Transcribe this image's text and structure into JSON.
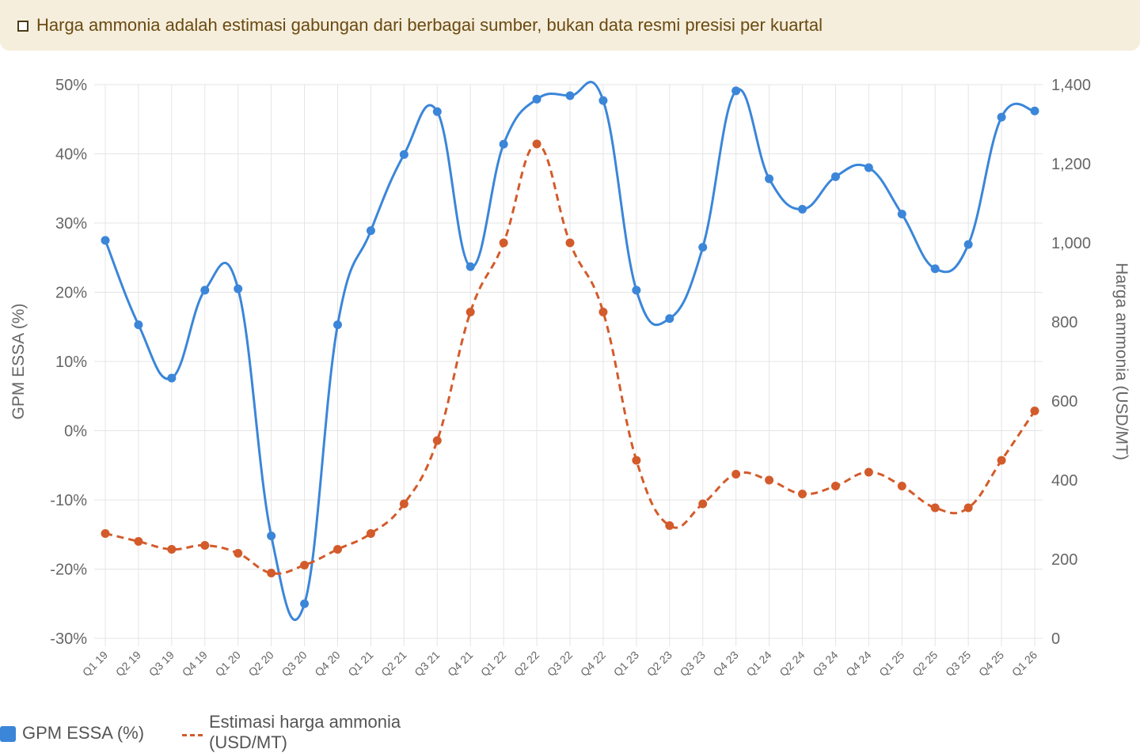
{
  "notice": {
    "icon": "checkbox-icon",
    "text": "Harga ammonia adalah estimasi gabungan dari berbagai sumber, bukan data resmi presisi per kuartal"
  },
  "chart_data": {
    "type": "line",
    "title": "",
    "categories": [
      "Q1 19",
      "Q2 19",
      "Q3 19",
      "Q4 19",
      "Q1 20",
      "Q2 20",
      "Q3 20",
      "Q4 20",
      "Q1 21",
      "Q2 21",
      "Q3 21",
      "Q4 21",
      "Q1 22",
      "Q2 22",
      "Q3 22",
      "Q4 22",
      "Q1 23",
      "Q2 23",
      "Q3 23",
      "Q4 23",
      "Q1 24",
      "Q2 24",
      "Q3 24",
      "Q4 24",
      "Q1 25",
      "Q2 25",
      "Q3 25",
      "Q4 25",
      "Q1 26"
    ],
    "series": [
      {
        "name": "GPM ESSA (%)",
        "axis": "left",
        "color": "#3b86d9",
        "style": "solid",
        "values": [
          27.5,
          15.3,
          7.6,
          20.3,
          20.5,
          -15.2,
          -25.0,
          15.3,
          28.9,
          39.9,
          46.1,
          23.7,
          41.4,
          47.9,
          48.4,
          47.7,
          20.3,
          16.2,
          26.5,
          49.1,
          36.4,
          32.0,
          36.7,
          38.0,
          31.3,
          23.4,
          26.9,
          45.3,
          46.2
        ]
      },
      {
        "name": "Estimasi harga ammonia (USD/MT)",
        "axis": "right",
        "color": "#d35b2b",
        "style": "dashed",
        "values": [
          265,
          245,
          225,
          235,
          215,
          165,
          185,
          225,
          265,
          340,
          500,
          825,
          1000,
          1250,
          1000,
          825,
          450,
          285,
          340,
          415,
          400,
          365,
          385,
          420,
          385,
          330,
          330,
          450,
          575
        ]
      }
    ],
    "y_left": {
      "label": "GPM ESSA (%)",
      "min": -30,
      "max": 50,
      "step": 10,
      "ticks": [
        "50%",
        "40%",
        "30%",
        "20%",
        "10%",
        "0%",
        "-10%",
        "-20%",
        "-30%"
      ]
    },
    "y_right": {
      "label": "Harga ammonia (USD/MT)",
      "min": 0,
      "max": 1400,
      "step": 200,
      "ticks": [
        "1,400",
        "1,200",
        "1,000",
        "800",
        "600",
        "400",
        "200",
        "0"
      ]
    },
    "grid": true,
    "legend": "bottom-left"
  },
  "legend": {
    "items": [
      {
        "label": "GPM ESSA (%)",
        "icon": "blue-square-icon"
      },
      {
        "label": "Estimasi harga ammonia (USD/MT)",
        "icon": "orange-dash-icon"
      }
    ]
  }
}
